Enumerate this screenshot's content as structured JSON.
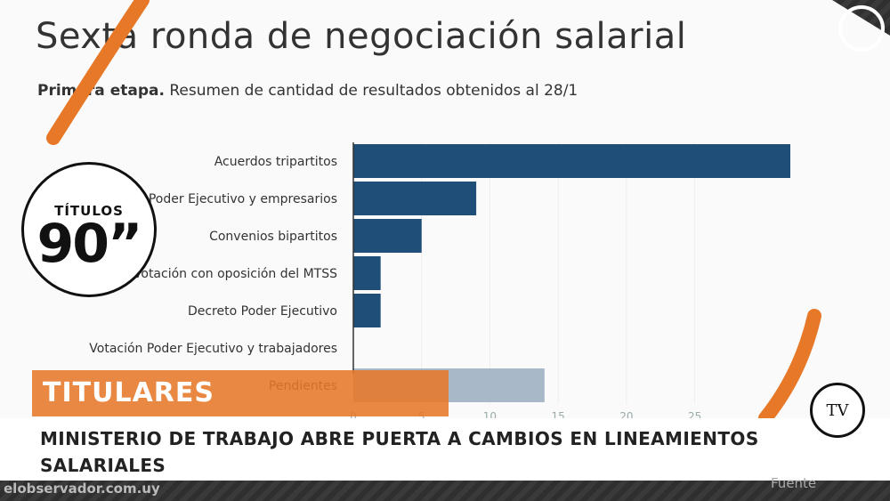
{
  "chart_data": {
    "type": "bar",
    "orientation": "horizontal",
    "title": "Sexta ronda de negociación salarial",
    "subtitle_bold": "Primera etapa.",
    "subtitle_rest": " Resumen de cantidad de resultados obtenidos al 28/1",
    "categories": [
      "Acuerdos tripartitos",
      "Votación Poder Ejecutivo y empresarios",
      "Convenios bipartitos",
      "Votación con oposición del MTSS",
      "Decreto Poder Ejecutivo",
      "Votación Poder Ejecutivo y trabajadores",
      "Pendientes"
    ],
    "values": [
      32,
      9,
      5,
      2,
      2,
      0,
      14
    ],
    "bar_colors": [
      "#1f4e79",
      "#1f4e79",
      "#1f4e79",
      "#1f4e79",
      "#1f4e79",
      "#1f4e79",
      "#a9b8c8"
    ],
    "xticks": [
      0,
      5,
      10,
      15,
      20,
      25
    ],
    "xlim": [
      0,
      32
    ],
    "grid": true,
    "source_label": "Fuente"
  },
  "overlay": {
    "logo_top": "TÍTULOS",
    "logo_bottom": "90”",
    "section_label": "TITULARES",
    "headline": "MINISTERIO DE TRABAJO ABRE PUERTA A CAMBIOS EN LINEAMIENTOS SALARIALES",
    "site": "elobservador.com.uy",
    "channel_logo": "TV"
  },
  "colors": {
    "accent": "#e67828",
    "bar": "#1f4e79",
    "bar_pending": "#a9b8c8"
  }
}
